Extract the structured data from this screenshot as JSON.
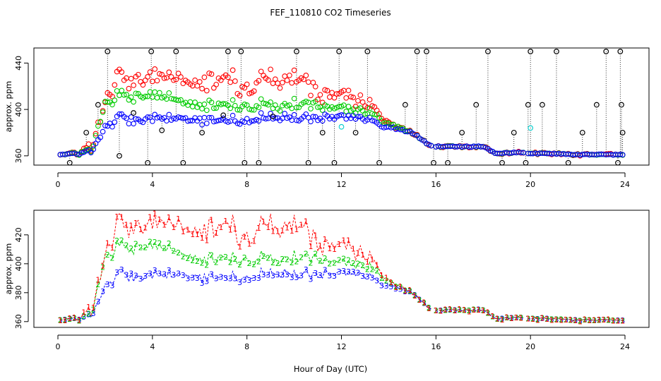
{
  "title": "FEF_110810  CO2 Timeseries",
  "xlabel": "Hour of Day (UTC)",
  "colors": {
    "series1": "#ff0000",
    "series2": "#00cc00",
    "series3": "#0000ff",
    "reference": "#000000",
    "cyan": "#00cccc"
  },
  "chart_data": [
    {
      "type": "scatter",
      "ylabel": "approx. ppm",
      "xlim": [
        -1,
        25
      ],
      "ylim": [
        352,
        453
      ],
      "xticks": [
        "0",
        "4",
        "8",
        "12",
        "16",
        "20",
        "24"
      ],
      "xtick_values": [
        0,
        4,
        8,
        12,
        16,
        20,
        24
      ],
      "yticks": [
        "360",
        "400",
        "440"
      ],
      "ytick_values": [
        360,
        400,
        440
      ],
      "reference_points": [
        {
          "x": 0.5,
          "y": 354
        },
        {
          "x": 1.2,
          "y": 380
        },
        {
          "x": 1.7,
          "y": 404
        },
        {
          "x": 2.1,
          "y": 450
        },
        {
          "x": 2.6,
          "y": 360
        },
        {
          "x": 3.2,
          "y": 397
        },
        {
          "x": 3.8,
          "y": 354
        },
        {
          "x": 3.95,
          "y": 450
        },
        {
          "x": 4.4,
          "y": 382
        },
        {
          "x": 5.0,
          "y": 450
        },
        {
          "x": 5.3,
          "y": 354
        },
        {
          "x": 6.1,
          "y": 380
        },
        {
          "x": 7.0,
          "y": 395
        },
        {
          "x": 7.2,
          "y": 450
        },
        {
          "x": 7.75,
          "y": 450
        },
        {
          "x": 7.9,
          "y": 354
        },
        {
          "x": 8.5,
          "y": 354
        },
        {
          "x": 9.1,
          "y": 394
        },
        {
          "x": 10.1,
          "y": 450
        },
        {
          "x": 10.6,
          "y": 354
        },
        {
          "x": 11.2,
          "y": 380
        },
        {
          "x": 11.7,
          "y": 354
        },
        {
          "x": 11.9,
          "y": 450
        },
        {
          "x": 12.6,
          "y": 380
        },
        {
          "x": 13.1,
          "y": 450
        },
        {
          "x": 13.6,
          "y": 354
        },
        {
          "x": 14.7,
          "y": 404
        },
        {
          "x": 15.2,
          "y": 450
        },
        {
          "x": 15.6,
          "y": 450
        },
        {
          "x": 15.9,
          "y": 354
        },
        {
          "x": 16.5,
          "y": 354
        },
        {
          "x": 17.1,
          "y": 380
        },
        {
          "x": 17.7,
          "y": 404
        },
        {
          "x": 18.2,
          "y": 450
        },
        {
          "x": 18.8,
          "y": 354
        },
        {
          "x": 19.3,
          "y": 380
        },
        {
          "x": 19.8,
          "y": 354
        },
        {
          "x": 19.9,
          "y": 404
        },
        {
          "x": 20.0,
          "y": 450
        },
        {
          "x": 20.5,
          "y": 404
        },
        {
          "x": 21.1,
          "y": 450
        },
        {
          "x": 21.6,
          "y": 354
        },
        {
          "x": 22.2,
          "y": 380
        },
        {
          "x": 22.8,
          "y": 404
        },
        {
          "x": 23.2,
          "y": 450
        },
        {
          "x": 23.7,
          "y": 354
        },
        {
          "x": 23.8,
          "y": 450
        },
        {
          "x": 23.85,
          "y": 404
        },
        {
          "x": 23.9,
          "y": 380
        }
      ],
      "cyan_points": [
        {
          "x": 12.0,
          "y": 385
        },
        {
          "x": 20.0,
          "y": 384
        }
      ]
    },
    {
      "type": "line",
      "ylabel": "approx. ppm",
      "xlim": [
        -1,
        25
      ],
      "ylim": [
        356,
        437
      ],
      "xticks": [
        "0",
        "4",
        "8",
        "12",
        "16",
        "20",
        "24"
      ],
      "xtick_values": [
        0,
        4,
        8,
        12,
        16,
        20,
        24
      ],
      "yticks": [
        "360",
        "380",
        "400",
        "420"
      ],
      "ytick_values": [
        360,
        380,
        400,
        420
      ],
      "series": [
        {
          "symbol": "1",
          "color": "#ff0000"
        },
        {
          "symbol": "2",
          "color": "#00cc00"
        },
        {
          "symbol": "3",
          "color": "#0000ff"
        }
      ]
    }
  ],
  "timeseries": {
    "x_start": 0.1,
    "x_end": 23.9,
    "x_step": 0.1,
    "gaps": [
      [
        15.8,
        16.0
      ],
      [
        19.7,
        19.9
      ]
    ],
    "anchors_x": [
      0,
      0.8,
      1.4,
      2.0,
      2.6,
      3.4,
      4.3,
      5.0,
      5.8,
      6.6,
      7.2,
      7.9,
      8.6,
      9.4,
      10.2,
      11.0,
      11.8,
      12.6,
      13.3,
      13.7,
      14.2,
      15.0,
      15.6,
      15.8,
      16.0,
      17.0,
      18.0,
      18.5,
      19.6,
      20.0,
      21.0,
      22.0,
      23.0,
      23.9
    ],
    "series1": [
      361,
      362,
      367,
      405,
      428,
      424,
      433,
      428,
      420,
      425,
      433,
      412,
      430,
      424,
      431,
      412,
      412,
      408,
      406,
      392,
      386,
      380,
      371,
      369,
      368,
      368,
      368,
      362,
      363,
      362,
      362,
      361,
      361,
      361
    ],
    "series2": [
      361,
      362,
      365,
      404,
      411,
      411,
      414,
      408,
      403,
      404,
      406,
      400,
      406,
      402,
      406,
      402,
      401,
      399,
      399,
      390,
      386,
      380,
      371,
      369,
      368,
      368,
      368,
      362,
      363,
      362,
      362,
      361,
      361,
      361
    ],
    "series3": [
      361,
      362,
      364,
      384,
      393,
      390,
      394,
      393,
      390,
      391,
      393,
      388,
      394,
      393,
      393,
      392,
      393,
      393,
      392,
      385,
      384,
      380,
      371,
      369,
      368,
      368,
      368,
      362,
      363,
      362,
      362,
      361,
      361,
      361
    ],
    "noise": [
      0,
      1.5,
      3.0,
      6.0,
      6.0,
      6.0,
      6.0,
      6.0,
      5.0,
      5.0,
      5.0,
      5.0,
      5.0,
      5.0,
      5.0,
      5.0,
      4.0,
      4.0,
      3.0,
      1.0,
      1.0,
      1.0,
      0.6,
      0.6,
      0.6,
      0.6,
      0.6,
      0.6,
      0.6,
      0.6,
      0.6,
      0.6,
      0.6,
      0.6
    ]
  }
}
